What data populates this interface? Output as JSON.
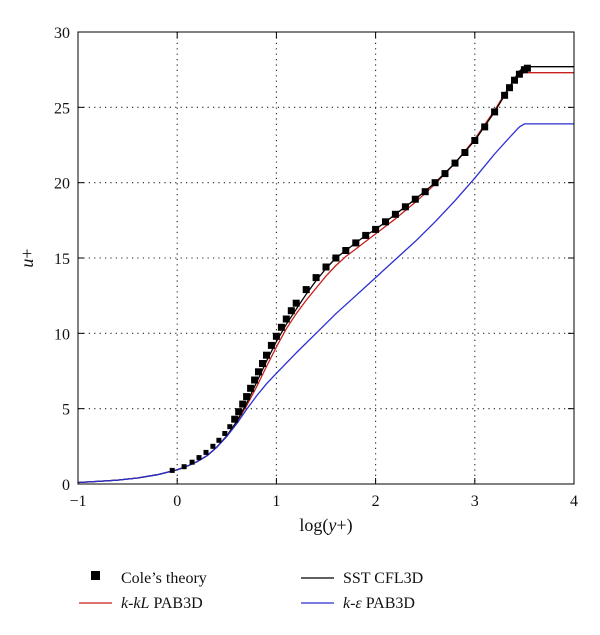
{
  "chart_data": {
    "type": "line",
    "title": "",
    "xlabel": "log(y+)",
    "ylabel": "u+",
    "xlim": [
      -1,
      4
    ],
    "ylim": [
      0,
      30
    ],
    "xticks": [
      -1,
      0,
      1,
      2,
      3,
      4
    ],
    "yticks": [
      0,
      5,
      10,
      15,
      20,
      25,
      30
    ],
    "xtick_labels": [
      "−1",
      "0",
      "1",
      "2",
      "3",
      "4"
    ],
    "ytick_labels": [
      "0",
      "5",
      "10",
      "15",
      "20",
      "25",
      "30"
    ],
    "grid": "dotted",
    "legend_position": "bottom",
    "series": [
      {
        "name": "Cole’s theory",
        "style": "square-markers",
        "color": "#000000",
        "x": [
          -0.05,
          0.07,
          0.15,
          0.22,
          0.29,
          0.36,
          0.42,
          0.48,
          0.53,
          0.58,
          0.62,
          0.66,
          0.7,
          0.74,
          0.78,
          0.82,
          0.86,
          0.9,
          0.95,
          1.0,
          1.05,
          1.1,
          1.15,
          1.2,
          1.3,
          1.4,
          1.5,
          1.6,
          1.7,
          1.8,
          1.9,
          2.0,
          2.1,
          2.2,
          2.3,
          2.4,
          2.5,
          2.6,
          2.7,
          2.8,
          2.9,
          3.0,
          3.1,
          3.2,
          3.3,
          3.35,
          3.4,
          3.45,
          3.5,
          3.53
        ],
        "y": [
          0.9,
          1.15,
          1.45,
          1.75,
          2.1,
          2.5,
          2.9,
          3.35,
          3.8,
          4.3,
          4.8,
          5.3,
          5.8,
          6.35,
          6.9,
          7.45,
          8.0,
          8.55,
          9.2,
          9.8,
          10.4,
          10.95,
          11.5,
          12.0,
          12.9,
          13.7,
          14.4,
          15.0,
          15.5,
          16.0,
          16.5,
          16.9,
          17.4,
          17.9,
          18.4,
          18.9,
          19.4,
          20.0,
          20.6,
          21.3,
          22.0,
          22.8,
          23.7,
          24.7,
          25.8,
          26.3,
          26.8,
          27.2,
          27.5,
          27.6
        ]
      },
      {
        "name": "k-kL PAB3D",
        "style": "line",
        "color": "#c8201c",
        "x": [
          -1,
          -0.8,
          -0.6,
          -0.4,
          -0.2,
          0,
          0.1,
          0.2,
          0.3,
          0.4,
          0.5,
          0.6,
          0.7,
          0.8,
          0.9,
          1.0,
          1.1,
          1.2,
          1.3,
          1.4,
          1.5,
          1.6,
          1.7,
          1.8,
          1.9,
          2.0,
          2.2,
          2.4,
          2.6,
          2.8,
          3.0,
          3.2,
          3.35,
          3.45,
          3.5,
          3.6,
          4.0
        ],
        "y": [
          0.1,
          0.17,
          0.26,
          0.4,
          0.62,
          0.95,
          1.18,
          1.48,
          1.88,
          2.45,
          3.2,
          4.1,
          5.2,
          6.45,
          7.8,
          9.1,
          10.3,
          11.3,
          12.2,
          13.0,
          13.8,
          14.5,
          15.1,
          15.6,
          16.1,
          16.6,
          17.6,
          18.7,
          19.9,
          21.3,
          22.9,
          24.8,
          26.4,
          27.2,
          27.3,
          27.3,
          27.3
        ]
      },
      {
        "name": "SST CFL3D",
        "style": "line",
        "color": "#000000",
        "x": [
          -1,
          -0.8,
          -0.6,
          -0.4,
          -0.2,
          0,
          0.1,
          0.2,
          0.3,
          0.4,
          0.5,
          0.6,
          0.7,
          0.8,
          0.9,
          1.0,
          1.1,
          1.2,
          1.3,
          1.4,
          1.5,
          1.6,
          1.7,
          1.8,
          1.9,
          2.0,
          2.2,
          2.4,
          2.6,
          2.8,
          3.0,
          3.2,
          3.3,
          3.4,
          3.45,
          3.5,
          3.55,
          3.6,
          4.0
        ],
        "y": [
          0.1,
          0.17,
          0.26,
          0.4,
          0.62,
          0.95,
          1.18,
          1.48,
          1.88,
          2.45,
          3.2,
          4.15,
          5.35,
          6.75,
          8.15,
          9.45,
          10.6,
          11.6,
          12.6,
          13.5,
          14.3,
          15.0,
          15.5,
          16.0,
          16.5,
          16.9,
          17.9,
          18.9,
          20.0,
          21.3,
          22.8,
          24.7,
          25.8,
          26.9,
          27.4,
          27.7,
          27.7,
          27.7,
          27.7
        ]
      },
      {
        "name": "k-ε PAB3D",
        "style": "line",
        "color": "#2a2ed0",
        "x": [
          -1,
          -0.8,
          -0.6,
          -0.4,
          -0.2,
          0,
          0.1,
          0.2,
          0.3,
          0.4,
          0.5,
          0.6,
          0.7,
          0.8,
          0.9,
          1.0,
          1.2,
          1.4,
          1.6,
          1.8,
          2.0,
          2.2,
          2.4,
          2.6,
          2.8,
          3.0,
          3.2,
          3.35,
          3.45,
          3.5,
          3.55,
          3.6,
          4.0
        ],
        "y": [
          0.1,
          0.17,
          0.26,
          0.4,
          0.62,
          0.95,
          1.18,
          1.48,
          1.88,
          2.45,
          3.15,
          4.0,
          4.95,
          5.85,
          6.65,
          7.35,
          8.7,
          10.0,
          11.3,
          12.5,
          13.7,
          14.9,
          16.1,
          17.4,
          18.8,
          20.3,
          21.9,
          23.0,
          23.7,
          23.9,
          23.9,
          23.9,
          23.9
        ]
      }
    ]
  },
  "legend": {
    "entries": [
      {
        "id": "cole",
        "italic_part": "",
        "plain_part": "Cole’s theory",
        "color": "#000000",
        "marker": "square"
      },
      {
        "id": "kkl",
        "italic_part": "k-kL",
        "plain_part": " PAB3D",
        "color": "#c8201c",
        "marker": "line"
      },
      {
        "id": "sst",
        "italic_part": "",
        "plain_part": "SST CFL3D",
        "color": "#000000",
        "marker": "line"
      },
      {
        "id": "keps",
        "italic_part": "k-ε",
        "plain_part": " PAB3D",
        "color": "#2a2ed0",
        "marker": "line"
      }
    ]
  },
  "axis_titles": {
    "x_prefix": "log(",
    "x_italic": "y",
    "x_suffix": "+)",
    "y_italic": "u",
    "y_suffix": "+"
  }
}
